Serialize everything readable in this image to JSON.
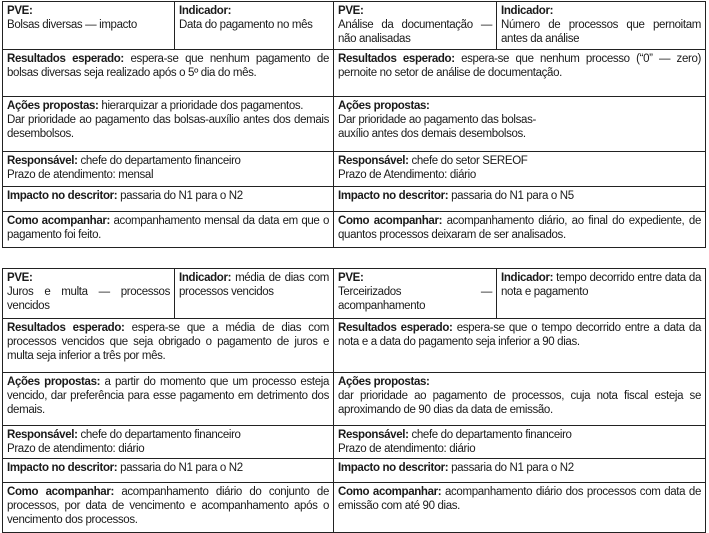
{
  "labels": {
    "pve": "PVE:",
    "indicador": "Indicador:",
    "resultados": "Resultados esperado:",
    "acoes": "Ações propostas:",
    "responsavel": "Responsável:",
    "impacto": "Impacto no descritor:",
    "como": "Como acompanhar:"
  },
  "tables": [
    {
      "left": {
        "pve": "Bolsas diversas — impacto",
        "indicador": "Data do pagamento no mês",
        "resultados": "espera-se que nenhum pagamento de bolsas diversas seja realizado após o 5º dia do mês.",
        "acoes": "hierarquizar a prioridade dos pagamentos.",
        "acoes_extra": "Dar prioridade ao pagamento das bolsas-auxílio antes dos demais desembolsos.",
        "responsavel": "chefe do departamento financeiro",
        "prazo": "Prazo de atendimento: mensal",
        "impacto": "passaria do N1 para o N2",
        "como": "acompanhamento mensal da data em que o pagamento foi feito."
      },
      "right": {
        "pve": "Análise da documentação — não analisadas",
        "indicador": "Número de processos que pernoitam antes da análise",
        "resultados": "espera-se que nenhum processo (“0” — zero) pernoite no setor de análise de documentação.",
        "acoes": "",
        "acoes_extra": "Dar prioridade ao pagamento das bolsas-auxílio antes dos demais desembolsos.",
        "responsavel": "chefe do setor SEREOF",
        "prazo": "Prazo de Atendimento: diário",
        "impacto": "passaria do N1 para o N5",
        "como": "acompanhamento diário, ao final do expediente, de quantos processos deixaram de ser analisados."
      }
    },
    {
      "left": {
        "pve": "Juros e multa — processos vencidos",
        "indicador": "média de dias com processos vencidos",
        "resultados": "espera-se que a média de dias com processos vencidos que seja obrigado o pagamento de juros e multa seja inferior a três por mês.",
        "acoes": "a partir do momento que um processo esteja vencido, dar preferência para esse pagamento em detrimento dos demais.",
        "responsavel": "chefe do departamento financeiro",
        "prazo": "Prazo de atendimento: diário",
        "impacto": "passaria do N1 para o N2",
        "como": "acompanhamento diário do conjunto de processos, por data de vencimento e acompanhamento após o vencimento dos processos."
      },
      "right": {
        "pve": "Terceirizados — acompanhamento",
        "indicador": "tempo decorrido entre data da nota e pagamento",
        "resultados": "espera-se que o tempo decorrido entre a data da nota e a data do pagamento seja inferior a 90 dias.",
        "acoes": "",
        "acoes_extra": "dar prioridade ao pagamento de processos, cuja nota fiscal esteja se aproximando de 90 dias da data de emissão.",
        "responsavel": "chefe do departamento financeiro",
        "prazo": "Prazo de atendimento: diário",
        "impacto": "passaria do N1 para o N2",
        "como": "acompanhamento diário dos processos com data de emissão com até 90 dias."
      }
    }
  ]
}
